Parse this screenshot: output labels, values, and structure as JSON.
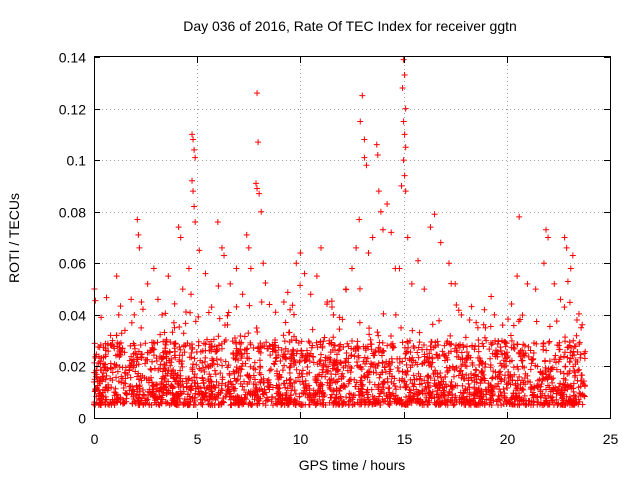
{
  "chart_data": {
    "type": "scatter",
    "title": "Day 036 of 2016, Rate Of TEC Index for receiver ggtn",
    "xlabel": "GPS time / hours",
    "ylabel": "ROTI / TECUs",
    "xlim": [
      0,
      25
    ],
    "ylim": [
      0,
      0.14
    ],
    "xticks": [
      0,
      5,
      10,
      15,
      20,
      25
    ],
    "xtick_labels": [
      "0",
      "5",
      "10",
      "15",
      "20",
      "25"
    ],
    "yticks": [
      0,
      0.02,
      0.04,
      0.06,
      0.08,
      0.1,
      0.12,
      0.14
    ],
    "ytick_labels": [
      "0",
      "0.02",
      "0.04",
      "0.06",
      "0.08",
      "0.1",
      "0.12",
      "0.14"
    ],
    "grid": true,
    "marker": "+",
    "color": "#ff0000",
    "series": [
      {
        "name": "ROTI",
        "x_range": [
          0,
          23.8
        ],
        "typical_range": [
          0.005,
          0.03
        ],
        "points": [
          [
            0.1,
            0.016
          ],
          [
            0.3,
            0.022
          ],
          [
            0.6,
            0.012
          ],
          [
            0.9,
            0.03
          ],
          [
            1.1,
            0.055
          ],
          [
            1.2,
            0.04
          ],
          [
            1.5,
            0.034
          ],
          [
            1.8,
            0.046
          ],
          [
            2.1,
            0.077
          ],
          [
            2.15,
            0.071
          ],
          [
            2.2,
            0.066
          ],
          [
            2.3,
            0.045
          ],
          [
            2.6,
            0.052
          ],
          [
            2.9,
            0.058
          ],
          [
            3.1,
            0.046
          ],
          [
            3.3,
            0.04
          ],
          [
            3.6,
            0.055
          ],
          [
            3.9,
            0.035
          ],
          [
            4.1,
            0.074
          ],
          [
            4.2,
            0.07
          ],
          [
            4.3,
            0.05
          ],
          [
            4.6,
            0.058
          ],
          [
            4.7,
            0.048
          ],
          [
            4.75,
            0.11
          ],
          [
            4.8,
            0.108
          ],
          [
            4.85,
            0.104
          ],
          [
            4.9,
            0.101
          ],
          [
            4.75,
            0.092
          ],
          [
            4.8,
            0.088
          ],
          [
            4.85,
            0.082
          ],
          [
            4.9,
            0.076
          ],
          [
            5.1,
            0.065
          ],
          [
            5.4,
            0.056
          ],
          [
            5.7,
            0.043
          ],
          [
            6.0,
            0.076
          ],
          [
            6.2,
            0.066
          ],
          [
            6.3,
            0.063
          ],
          [
            6.6,
            0.052
          ],
          [
            6.9,
            0.058
          ],
          [
            7.2,
            0.048
          ],
          [
            7.4,
            0.071
          ],
          [
            7.5,
            0.066
          ],
          [
            7.6,
            0.058
          ],
          [
            7.85,
            0.091
          ],
          [
            7.9,
            0.089
          ],
          [
            7.9,
            0.126
          ],
          [
            7.95,
            0.107
          ],
          [
            8.0,
            0.087
          ],
          [
            8.1,
            0.08
          ],
          [
            8.2,
            0.06
          ],
          [
            8.5,
            0.044
          ],
          [
            8.8,
            0.041
          ],
          [
            9.2,
            0.045
          ],
          [
            9.5,
            0.042
          ],
          [
            9.8,
            0.06
          ],
          [
            10.0,
            0.064
          ],
          [
            10.2,
            0.056
          ],
          [
            10.5,
            0.048
          ],
          [
            10.8,
            0.055
          ],
          [
            11.0,
            0.066
          ],
          [
            11.3,
            0.045
          ],
          [
            11.6,
            0.04
          ],
          [
            11.9,
            0.039
          ],
          [
            12.2,
            0.05
          ],
          [
            12.5,
            0.058
          ],
          [
            12.7,
            0.066
          ],
          [
            12.85,
            0.077
          ],
          [
            12.9,
            0.115
          ],
          [
            13.0,
            0.125
          ],
          [
            13.1,
            0.108
          ],
          [
            13.1,
            0.101
          ],
          [
            13.2,
            0.098
          ],
          [
            13.3,
            0.064
          ],
          [
            13.5,
            0.07
          ],
          [
            13.7,
            0.106
          ],
          [
            13.75,
            0.102
          ],
          [
            13.8,
            0.088
          ],
          [
            13.9,
            0.08
          ],
          [
            14.0,
            0.073
          ],
          [
            14.2,
            0.083
          ],
          [
            14.4,
            0.072
          ],
          [
            14.6,
            0.058
          ],
          [
            14.8,
            0.058
          ],
          [
            14.9,
            0.09
          ],
          [
            14.95,
            0.128
          ],
          [
            15.0,
            0.139
          ],
          [
            15.05,
            0.133
          ],
          [
            15.1,
            0.12
          ],
          [
            15.0,
            0.115
          ],
          [
            15.05,
            0.11
          ],
          [
            15.1,
            0.105
          ],
          [
            15.0,
            0.1
          ],
          [
            15.05,
            0.094
          ],
          [
            15.1,
            0.088
          ],
          [
            15.2,
            0.07
          ],
          [
            15.4,
            0.052
          ],
          [
            15.7,
            0.061
          ],
          [
            16.0,
            0.05
          ],
          [
            16.3,
            0.074
          ],
          [
            16.5,
            0.079
          ],
          [
            16.8,
            0.068
          ],
          [
            17.2,
            0.06
          ],
          [
            17.5,
            0.052
          ],
          [
            17.8,
            0.04
          ],
          [
            18.2,
            0.038
          ],
          [
            18.6,
            0.035
          ],
          [
            19.0,
            0.03
          ],
          [
            19.4,
            0.04
          ],
          [
            19.8,
            0.036
          ],
          [
            20.2,
            0.032
          ],
          [
            20.5,
            0.055
          ],
          [
            20.6,
            0.078
          ],
          [
            21.0,
            0.052
          ],
          [
            21.4,
            0.05
          ],
          [
            21.8,
            0.06
          ],
          [
            21.9,
            0.073
          ],
          [
            22.0,
            0.07
          ],
          [
            22.3,
            0.052
          ],
          [
            22.6,
            0.046
          ],
          [
            22.8,
            0.07
          ],
          [
            22.9,
            0.066
          ],
          [
            23.1,
            0.058
          ],
          [
            23.2,
            0.063
          ],
          [
            23.4,
            0.038
          ],
          [
            23.6,
            0.035
          ],
          [
            23.75,
            0.025
          ]
        ]
      }
    ]
  }
}
